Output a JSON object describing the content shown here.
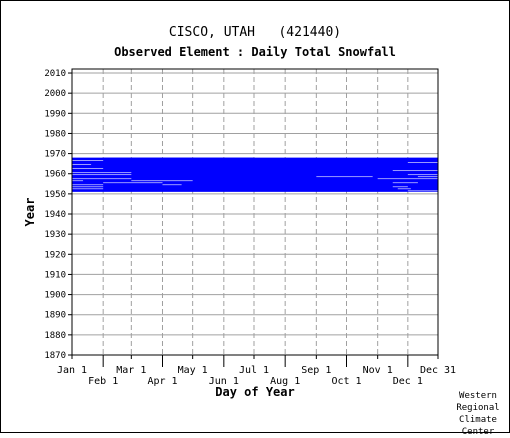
{
  "chart_data": {
    "type": "heatmap",
    "title": "CISCO, UTAH   (421440)",
    "subtitle": "Observed Element : Daily Total Snowfall",
    "xlabel": "Day of Year",
    "ylabel": "Year",
    "xlim": [
      1,
      365
    ],
    "ylim": [
      1870,
      2012
    ],
    "x_ticks": [
      {
        "label": "Jan 1",
        "day": 1,
        "row": "top"
      },
      {
        "label": "Feb 1",
        "day": 32,
        "row": "bottom"
      },
      {
        "label": "Mar 1",
        "day": 60,
        "row": "top"
      },
      {
        "label": "Apr 1",
        "day": 91,
        "row": "bottom"
      },
      {
        "label": "May 1",
        "day": 121,
        "row": "top"
      },
      {
        "label": "Jun 1",
        "day": 152,
        "row": "bottom"
      },
      {
        "label": "Jul 1",
        "day": 182,
        "row": "top"
      },
      {
        "label": "Aug 1",
        "day": 213,
        "row": "bottom"
      },
      {
        "label": "Sep 1",
        "day": 244,
        "row": "top"
      },
      {
        "label": "Oct 1",
        "day": 274,
        "row": "bottom"
      },
      {
        "label": "Nov 1",
        "day": 305,
        "row": "top"
      },
      {
        "label": "Dec 1",
        "day": 335,
        "row": "bottom"
      },
      {
        "label": "Dec 31",
        "day": 365,
        "row": "top"
      }
    ],
    "y_ticks": [
      2010,
      2000,
      1990,
      1980,
      1970,
      1960,
      1950,
      1940,
      1930,
      1920,
      1910,
      1900,
      1890,
      1880,
      1870
    ],
    "grid": true,
    "series": [
      {
        "color": "#0000ff",
        "observed_ranges": [
          {
            "year_start": 1951,
            "year_end": 1967,
            "day_start": 1,
            "day_end": 365
          },
          {
            "year_start": 1963,
            "year_end": 1967,
            "day_start": 32,
            "day_end": 182
          }
        ],
        "missing_ranges": [
          {
            "year": 1966,
            "day_start": 1,
            "day_end": 32
          },
          {
            "year": 1965,
            "day_start": 335,
            "day_end": 365
          },
          {
            "year": 1964,
            "day_start": 1,
            "day_end": 20
          },
          {
            "year": 1962,
            "day_start": 1,
            "day_end": 32
          },
          {
            "year": 1961,
            "day_start": 320,
            "day_end": 365
          },
          {
            "year": 1960,
            "day_start": 1,
            "day_end": 60
          },
          {
            "year": 1959,
            "day_start": 1,
            "day_end": 60
          },
          {
            "year": 1959,
            "day_start": 335,
            "day_end": 365
          },
          {
            "year": 1958,
            "day_start": 244,
            "day_end": 300
          },
          {
            "year": 1958,
            "day_start": 345,
            "day_end": 365
          },
          {
            "year": 1957,
            "day_start": 1,
            "day_end": 60
          },
          {
            "year": 1957,
            "day_start": 305,
            "day_end": 365
          },
          {
            "year": 1956,
            "day_start": 1,
            "day_end": 12
          },
          {
            "year": 1956,
            "day_start": 60,
            "day_end": 121
          },
          {
            "year": 1955,
            "day_start": 32,
            "day_end": 91
          },
          {
            "year": 1955,
            "day_start": 320,
            "day_end": 345
          },
          {
            "year": 1954,
            "day_start": 1,
            "day_end": 32
          },
          {
            "year": 1954,
            "day_start": 91,
            "day_end": 110
          },
          {
            "year": 1953,
            "day_start": 1,
            "day_end": 32
          },
          {
            "year": 1953,
            "day_start": 320,
            "day_end": 335
          },
          {
            "year": 1952,
            "day_start": 1,
            "day_end": 32
          },
          {
            "year": 1952,
            "day_start": 325,
            "day_end": 338
          },
          {
            "year": 1951,
            "day_start": 335,
            "day_end": 365
          }
        ]
      }
    ]
  },
  "credit": {
    "line1": "Western",
    "line2": "Regional",
    "line3": "Climate",
    "line4": "Center"
  }
}
